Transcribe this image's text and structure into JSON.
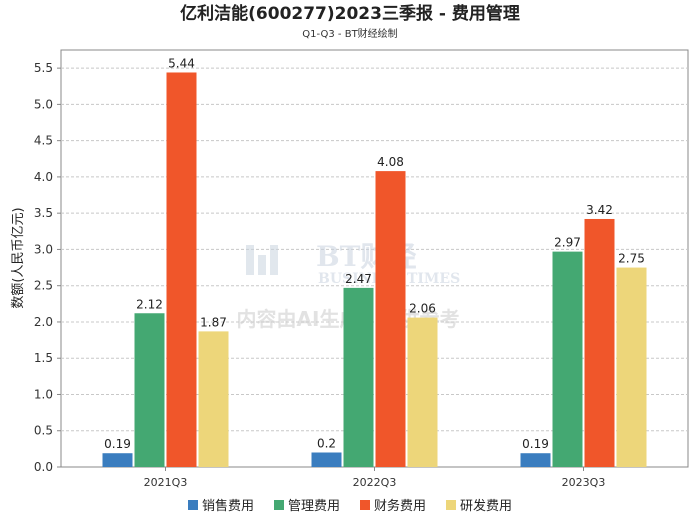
{
  "title": "亿利洁能(600277)2023三季报 - 费用管理",
  "subtitle": "Q1-Q3 - BT财经绘制",
  "watermark": {
    "brand": "BT财经",
    "brand_en": "BUSINESS TIMES",
    "notice": "内容由AI生成，仅供参考"
  },
  "colors": {
    "销售费用": "#3a7dbf",
    "管理费用": "#44a872",
    "财务费用": "#f0562a",
    "研发费用": "#edd67a"
  },
  "chart_data": {
    "type": "bar",
    "title": "亿利洁能(600277)2023三季报 - 费用管理",
    "subtitle": "Q1-Q3 - BT财经绘制",
    "xlabel": "",
    "ylabel": "数额(人民币亿元)",
    "ylim": [
      0,
      5.75
    ],
    "yticks": [
      "0.0",
      "0.5",
      "1.0",
      "1.5",
      "2.0",
      "2.5",
      "3.0",
      "3.5",
      "4.0",
      "4.5",
      "5.0",
      "5.5"
    ],
    "grid": true,
    "legend": "bottom",
    "categories": [
      "2021Q3",
      "2022Q3",
      "2023Q3"
    ],
    "series": [
      {
        "name": "销售费用",
        "values": [
          0.19,
          0.2,
          0.19
        ],
        "labels": [
          "0.19",
          "0.2",
          "0.19"
        ]
      },
      {
        "name": "管理费用",
        "values": [
          2.12,
          2.47,
          2.97
        ],
        "labels": [
          "2.12",
          "2.47",
          "2.97"
        ]
      },
      {
        "name": "财务费用",
        "values": [
          5.44,
          4.08,
          3.42
        ],
        "labels": [
          "5.44",
          "4.08",
          "3.42"
        ]
      },
      {
        "name": "研发费用",
        "values": [
          1.87,
          2.06,
          2.75
        ],
        "labels": [
          "1.87",
          "2.06",
          "2.75"
        ]
      }
    ]
  }
}
